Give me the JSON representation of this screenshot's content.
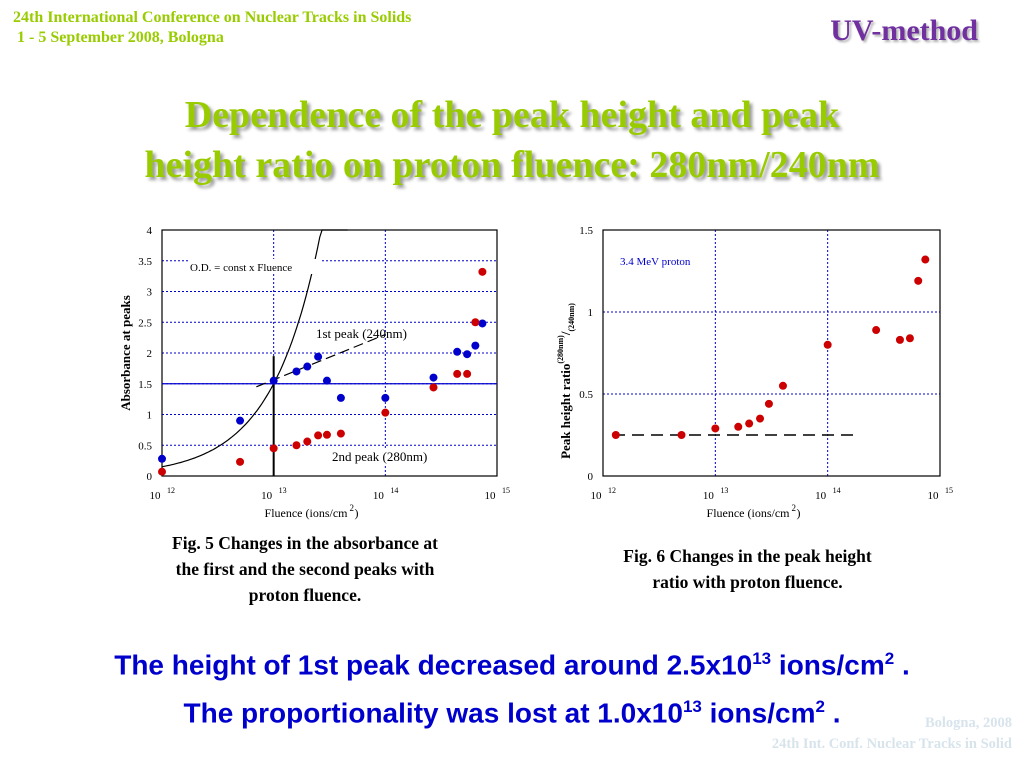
{
  "header": {
    "conference_line1": "24th International Conference on Nuclear Tracks in Solids",
    "conference_line2": " 1 - 5 September 2008, Bologna",
    "method": "UV-method"
  },
  "slide_title": {
    "line1": "Dependence of the peak height and peak",
    "line2": "height ratio on proton fluence: 280nm/240nm"
  },
  "figures": {
    "fig5_caption": [
      "Fig. 5 Changes in the absorbance at",
      "the first and the second peaks with",
      "proton fluence."
    ],
    "fig6_caption": [
      "Fig. 6 Changes in the peak height",
      "ratio with proton fluence."
    ]
  },
  "conclusion": {
    "line1": {
      "pre": "The height of 1st peak decreased around 2.5x10",
      "exp": "13",
      "post": " ions/cm",
      "exp2": "2",
      "end": " ."
    },
    "line2": {
      "pre": "The proportionality was lost at 1.0x10",
      "exp": "13",
      "post": " ions/cm",
      "exp2": "2",
      "end": " ."
    }
  },
  "footer": {
    "line1": "Bologna,  2008",
    "line2": "24th Int. Conf. Nuclear Tracks in Solid"
  },
  "colors": {
    "blue_series": "#0000cc",
    "red_series": "#cc0000",
    "title": "#99cc00",
    "method": "#7030a0",
    "conclusion": "#0000cc"
  },
  "chart_data": [
    {
      "type": "scatter",
      "xscale": "log",
      "xlim": [
        1000000000000.0,
        1000000000000000.0
      ],
      "ylim": [
        0,
        4
      ],
      "yticks": [
        0,
        0.5,
        1,
        1.5,
        2,
        2.5,
        3,
        3.5,
        4
      ],
      "ytick_labels": [
        "0",
        "0.5",
        "1",
        "1.5",
        "2",
        "2.5",
        "3",
        "3.5",
        "4"
      ],
      "xtick_labels": [
        {
          "base": "10",
          "exp": "12"
        },
        {
          "base": "10",
          "exp": "13"
        },
        {
          "base": "10",
          "exp": "14"
        },
        {
          "base": "10",
          "exp": "15"
        }
      ],
      "ylabel": "Absorbance at peaks",
      "xlabel": {
        "text": "Fluence (ions/cm",
        "exp": "2",
        "end": ")"
      },
      "grid": true,
      "annotations": {
        "formula": "O.D. = const x Fluence",
        "peak1": "1st peak (240nm)",
        "peak2": "2nd peak (280nm)"
      },
      "vline_x": 10000000000000.0,
      "hline_y": 1.5,
      "curve": {
        "fn": "linear",
        "k": 1.5e-13,
        "x_range": [
          1000000000000.0,
          46000000000000.0
        ]
      },
      "dashed_line": {
        "x": [
          7000000000000.0,
          100000000000000.0
        ],
        "y": [
          1.45,
          2.3
        ]
      },
      "series": [
        {
          "name": "1st peak (240nm)",
          "color": "#0000cc",
          "x": [
            1000000000000.0,
            5000000000000.0,
            10000000000000.0,
            16000000000000.0,
            20000000000000.0,
            25000000000000.0,
            30000000000000.0,
            40000000000000.0,
            100000000000000.0,
            270000000000000.0,
            440000000000000.0,
            540000000000000.0,
            640000000000000.0,
            740000000000000.0
          ],
          "y": [
            0.28,
            0.9,
            1.55,
            1.7,
            1.78,
            1.94,
            1.55,
            1.27,
            1.27,
            1.6,
            2.02,
            1.98,
            2.12,
            2.48
          ]
        },
        {
          "name": "2nd peak (280nm)",
          "color": "#cc0000",
          "x": [
            1000000000000.0,
            5000000000000.0,
            10000000000000.0,
            16000000000000.0,
            20000000000000.0,
            25000000000000.0,
            30000000000000.0,
            40000000000000.0,
            100000000000000.0,
            270000000000000.0,
            440000000000000.0,
            540000000000000.0,
            640000000000000.0,
            740000000000000.0
          ],
          "y": [
            0.07,
            0.23,
            0.45,
            0.5,
            0.56,
            0.66,
            0.67,
            0.69,
            1.03,
            1.44,
            1.66,
            1.66,
            2.5,
            3.32
          ]
        }
      ]
    },
    {
      "type": "scatter",
      "xscale": "log",
      "xlim": [
        1000000000000.0,
        1000000000000000.0
      ],
      "ylim": [
        0,
        1.5
      ],
      "yticks": [
        0,
        0.5,
        1,
        1.5
      ],
      "ytick_labels": [
        "0",
        "0.5",
        "1",
        "1.5"
      ],
      "xtick_labels": [
        {
          "base": "10",
          "exp": "12"
        },
        {
          "base": "10",
          "exp": "13"
        },
        {
          "base": "10",
          "exp": "14"
        },
        {
          "base": "10",
          "exp": "15"
        }
      ],
      "ylabel": {
        "main": "Peak height ratio",
        "sup": "(280nm)",
        "slash": "/",
        "sub": "(240nm)"
      },
      "xlabel": {
        "text": "Fluence (ions/cm",
        "exp": "2",
        "end": ")"
      },
      "grid": true,
      "annotations": {
        "legend": "3.4 MeV proton"
      },
      "dashed_line": {
        "x": [
          1000000000000.0,
          170000000000000.0
        ],
        "y": [
          0.25,
          0.25
        ]
      },
      "series": [
        {
          "name": "3.4 MeV proton",
          "color": "#cc0000",
          "x": [
            1300000000000.0,
            5000000000000.0,
            10000000000000.0,
            16000000000000.0,
            20000000000000.0,
            25000000000000.0,
            30000000000000.0,
            40000000000000.0,
            100000000000000.0,
            270000000000000.0,
            440000000000000.0,
            540000000000000.0,
            640000000000000.0,
            740000000000000.0
          ],
          "y": [
            0.25,
            0.25,
            0.29,
            0.3,
            0.32,
            0.35,
            0.44,
            0.55,
            0.8,
            0.89,
            0.83,
            0.84,
            1.19,
            1.32
          ]
        }
      ]
    }
  ]
}
